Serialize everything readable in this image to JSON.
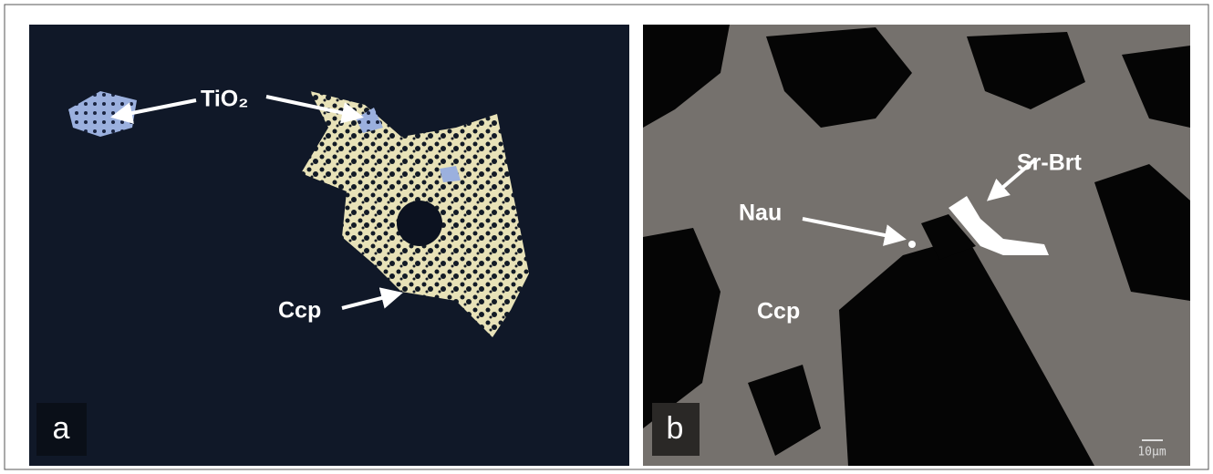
{
  "panel_a": {
    "label": "a",
    "annotations": {
      "tio2": "TiO₂",
      "ccp": "Ccp"
    }
  },
  "panel_b": {
    "label": "b",
    "annotations": {
      "sr_brt": "Sr-Brt",
      "nau": "Nau",
      "ccp": "Ccp"
    },
    "scale_bar": "10μm"
  }
}
